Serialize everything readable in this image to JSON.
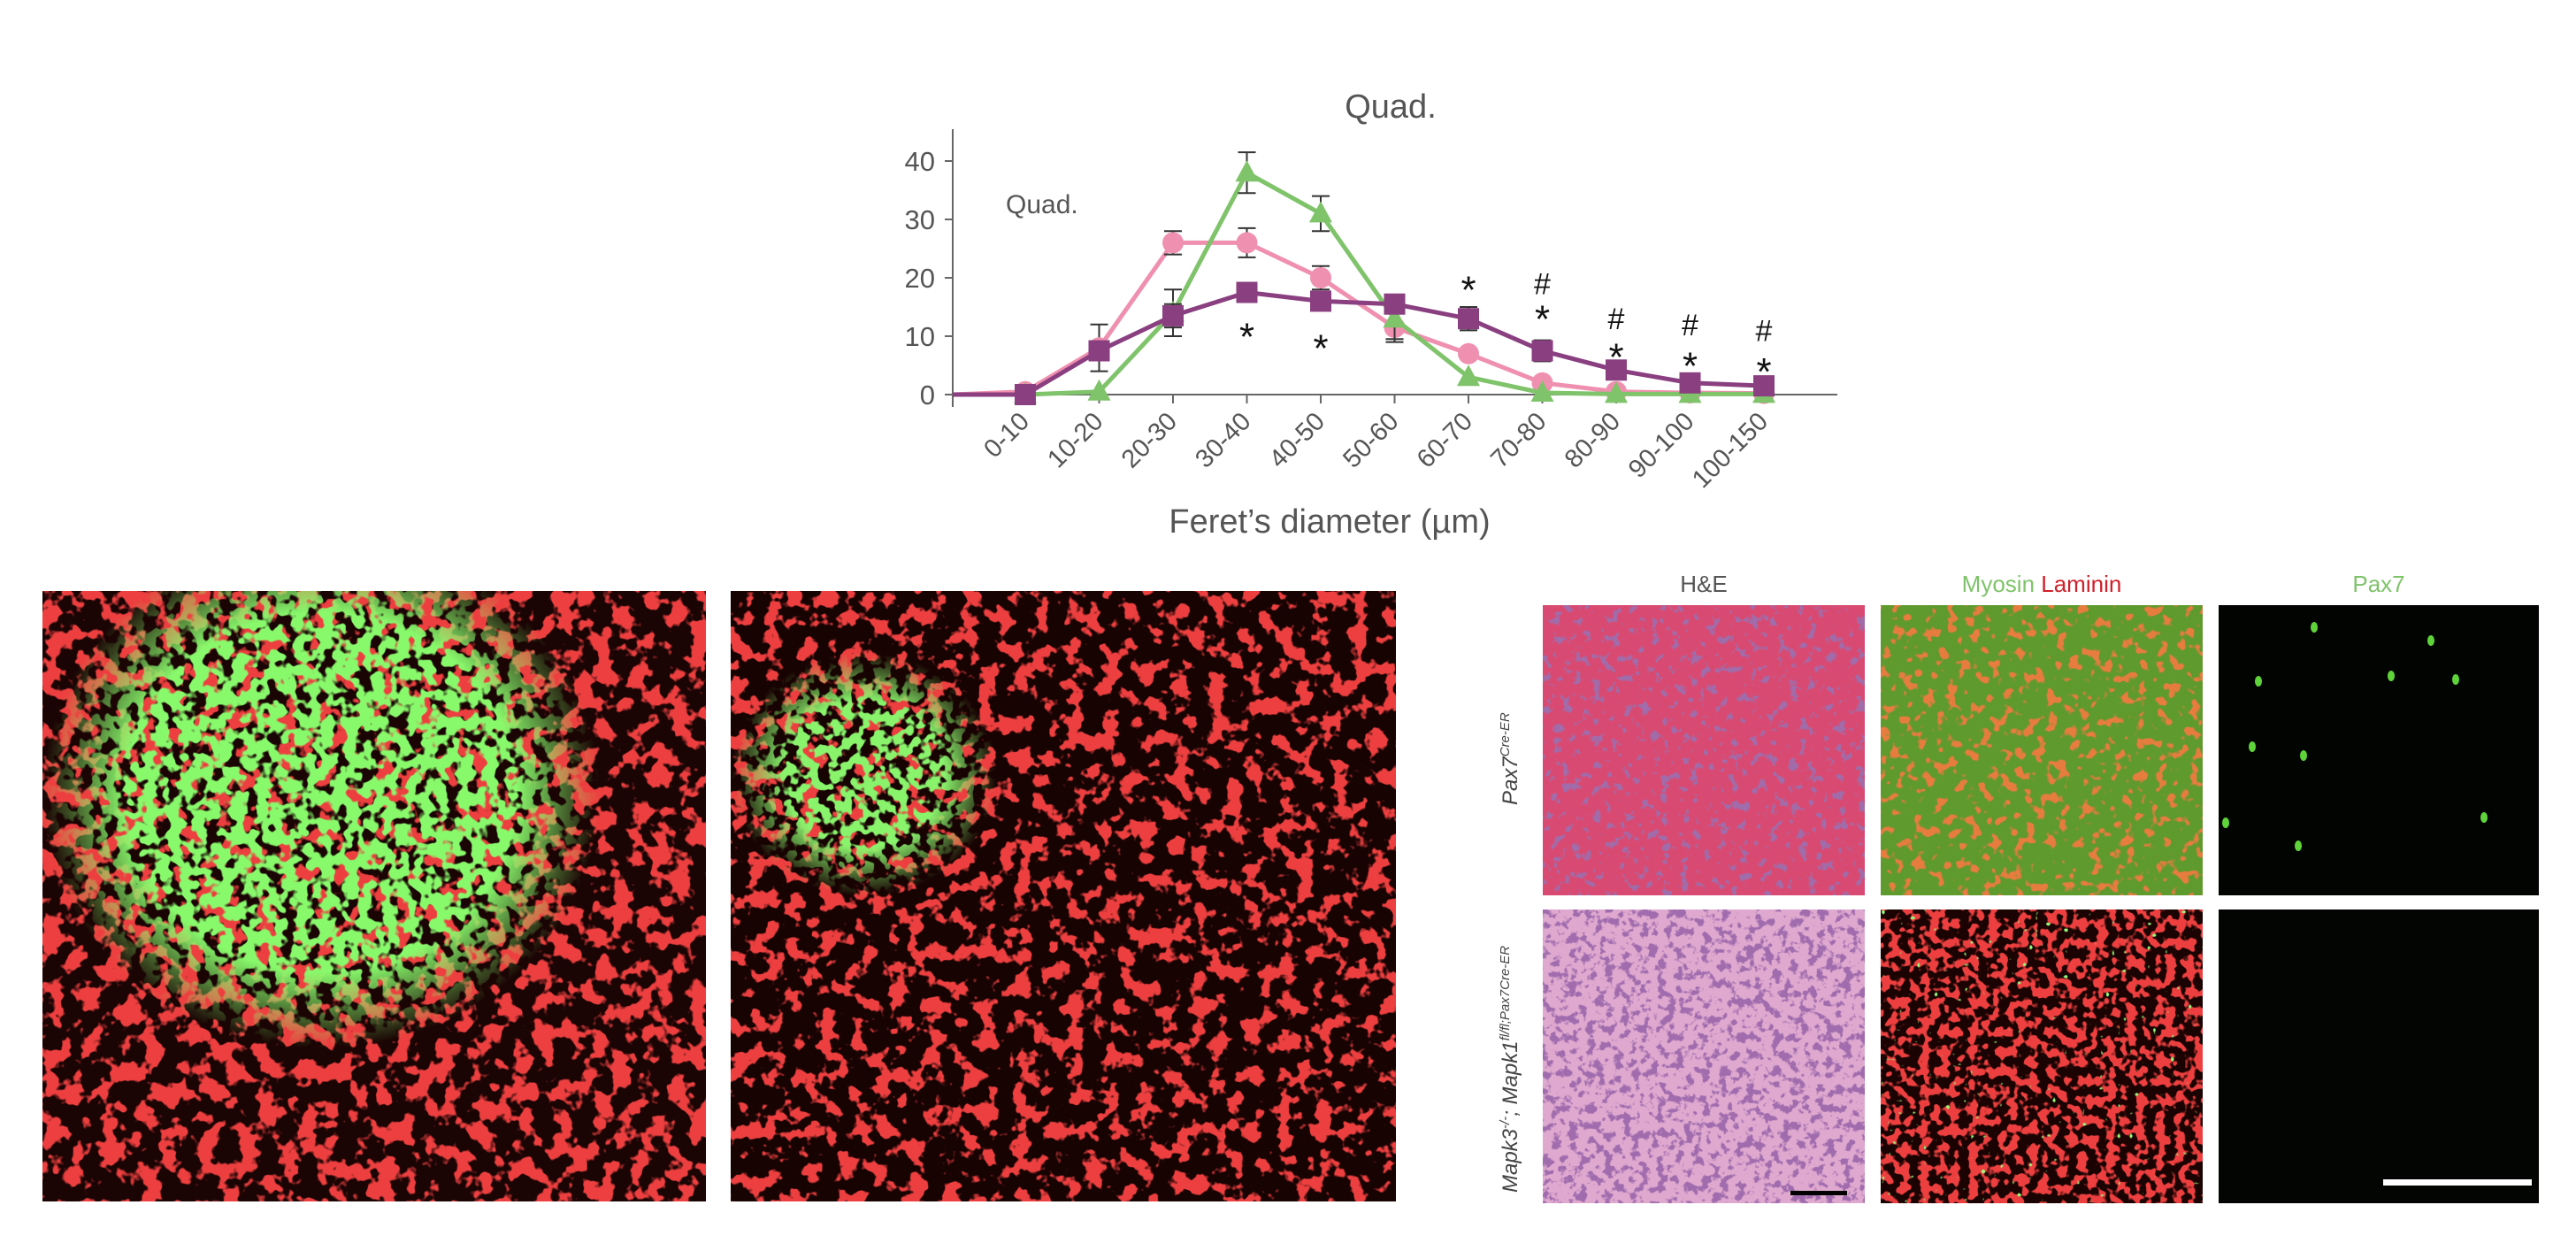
{
  "chart_data": {
    "type": "line",
    "title": "Quad.",
    "inset_label": "Quad.",
    "xlabel": "Feret’s diameter (µm)",
    "ylabel": "",
    "ylim": [
      0,
      45
    ],
    "yticks": [
      0,
      10,
      20,
      30,
      40
    ],
    "categories": [
      "0-10",
      "10-20",
      "20-30",
      "30-40",
      "40-50",
      "50-60",
      "60-70",
      "70-80",
      "80-90",
      "90-100",
      "100-150"
    ],
    "series": [
      {
        "color": "#f090b0",
        "marker": "circle",
        "values": [
          0.5,
          8,
          26,
          26,
          20,
          11.5,
          7,
          2,
          0.5,
          0.3,
          0.2
        ],
        "errors": [
          0,
          4,
          2,
          2.5,
          2,
          2.5,
          0,
          0,
          0,
          0,
          0
        ]
      },
      {
        "color": "#7fc36a",
        "marker": "triangle",
        "values": [
          0,
          0.5,
          14,
          38,
          31,
          13,
          3,
          0.3,
          0.1,
          0.1,
          0.1
        ],
        "errors": [
          0,
          0,
          4,
          3.5,
          3,
          3.5,
          0,
          0,
          0,
          0,
          0
        ]
      },
      {
        "color": "#8a3f80",
        "marker": "square",
        "values": [
          0,
          7.5,
          13.5,
          17.5,
          16,
          15.5,
          13,
          7.5,
          4.2,
          2,
          1.5
        ],
        "errors": [
          0,
          0,
          2,
          1.5,
          1.5,
          1.5,
          2,
          1.8,
          1,
          0.5,
          0.5
        ]
      }
    ],
    "annotations": [
      {
        "category": "30-40",
        "text": "*",
        "y": 11
      },
      {
        "category": "40-50",
        "text": "*",
        "y": 9
      },
      {
        "category": "60-70",
        "text": "*",
        "y": 19
      },
      {
        "category": "70-80",
        "text": "*",
        "y": 14
      },
      {
        "category": "70-80",
        "text": "#",
        "y": 19
      },
      {
        "category": "80-90",
        "text": "*",
        "y": 7.5
      },
      {
        "category": "80-90",
        "text": "#",
        "y": 13
      },
      {
        "category": "90-100",
        "text": "*",
        "y": 6
      },
      {
        "category": "90-100",
        "text": "#",
        "y": 12
      },
      {
        "category": "100-150",
        "text": "*",
        "y": 5
      },
      {
        "category": "100-150",
        "text": "#",
        "y": 11
      }
    ]
  },
  "panels": {
    "col_he": "H&E",
    "col_myosin": "Myosin",
    "col_laminin": "Laminin",
    "col_pax7": "Pax7",
    "row1": {
      "gene": "Pax7",
      "sup": "Cre-ER"
    },
    "row2": {
      "part1": "Mapk3",
      "sup1": "-/-",
      "part2": "; Mapk1",
      "sup2": "fl/fl;Pax7Cre-ER"
    },
    "colors": {
      "myosin": "#7fc36a",
      "laminin": "#d0202a",
      "pax7": "#7fc36a"
    }
  }
}
